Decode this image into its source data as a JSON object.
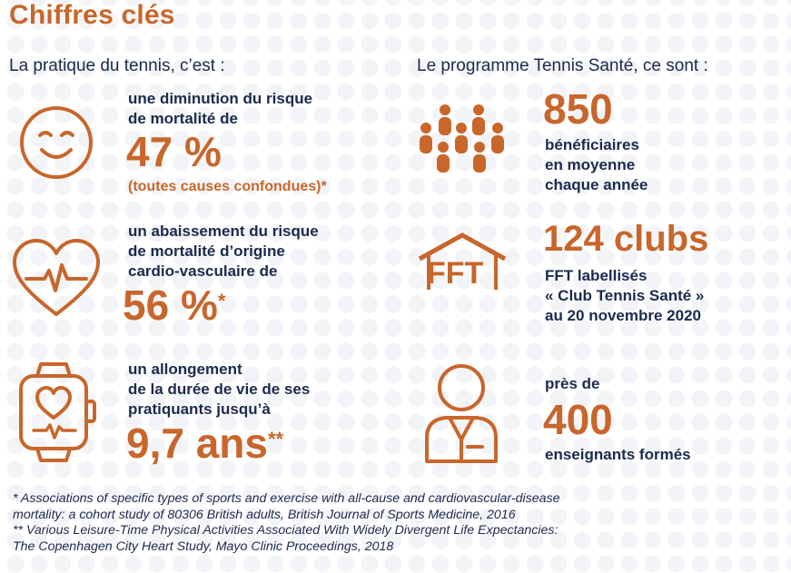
{
  "title": "Chiffres clés",
  "left": {
    "heading": "La pratique du tennis, c’est :",
    "item1": {
      "line1": "une diminution du risque",
      "line2": "de mortalité de",
      "value": "47 %",
      "note": "(toutes causes confondues)*"
    },
    "item2": {
      "line1": "un abaissement du risque",
      "line2": "de mortalité d’origine",
      "line3": "cardio-vasculaire de",
      "value": "56 %",
      "mark": "*"
    },
    "item3": {
      "line1": "un allongement",
      "line2": "de la durée de vie de ses",
      "line3": "pratiquants jusqu’à",
      "value": "9,7 ans",
      "mark": "**"
    }
  },
  "right": {
    "heading": "Le programme Tennis Santé, ce sont :",
    "item1": {
      "value": "850",
      "line1": "bénéficiaires",
      "line2": "en moyenne",
      "line3": "chaque année"
    },
    "item2": {
      "icon_text": "FFT",
      "value": "124 clubs",
      "line1": "FFT labellisés",
      "line2": "« Club Tennis Santé »",
      "line3": "au 20 novembre 2020"
    },
    "item3": {
      "line1": "près de",
      "value": "400",
      "line2": "enseignants formés"
    }
  },
  "footnotes": {
    "line1": "* Associations of specific types of sports and exercise with all-cause and cardiovascular-disease",
    "line2": "mortality: a cohort study of 80306 British adults, British Journal of Sports Medicine, 2016",
    "line3": "** Various Leisure-Time Physical Activities Associated With Widely Divergent Life Expectancies:",
    "line4": "The Copenhagen City Heart Study, Mayo Clinic Proceedings, 2018"
  },
  "colors": {
    "accent": "#c8662b",
    "text": "#1b2a4e"
  }
}
